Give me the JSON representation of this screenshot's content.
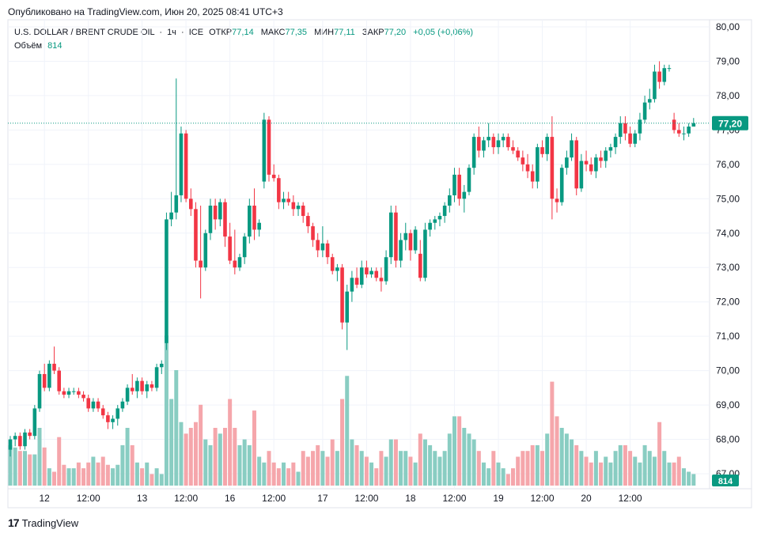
{
  "header": {
    "published": "Опубликовано на TradingView.com, Июн 20, 2025 08:41 UTC+3"
  },
  "legend": {
    "symbol": "U.S. DOLLAR / BRENT CRUDE OIL",
    "interval": "1ч",
    "exchange": "ICE",
    "open_label": "ОТКР",
    "open": "77,14",
    "high_label": "МАКС",
    "high": "77,35",
    "low_label": "МИН",
    "low": "77,11",
    "close_label": "ЗАКР",
    "close": "77,20",
    "change": "+0,05 (+0,06%)",
    "volume_label": "Объём",
    "volume": "814"
  },
  "footer": {
    "logo_text": "TradingView"
  },
  "colors": {
    "up": "#089981",
    "down": "#f23645",
    "up_vol": "#89cdc2",
    "down_vol": "#f5a6ab",
    "grid": "#f0f3fa",
    "axis_text": "#131722"
  },
  "chart_data": {
    "type": "candlestick",
    "title": "U.S. DOLLAR / BRENT CRUDE OIL · 1ч · ICE",
    "y_axis": {
      "min": 66.4,
      "max": 80.0,
      "ticks": [
        "80,00",
        "79,00",
        "78,00",
        "77,00",
        "76,00",
        "75,00",
        "74,00",
        "73,00",
        "72,00",
        "71,00",
        "70,00",
        "69,00",
        "68,00",
        "67,00"
      ],
      "tick_values": [
        80,
        79,
        78,
        77,
        76,
        75,
        74,
        73,
        72,
        71,
        70,
        69,
        68,
        67
      ]
    },
    "x_axis": {
      "labels": [
        "12",
        "12:00",
        "13",
        "12:00",
        "16",
        "12:00",
        "17",
        "12:00",
        "18",
        "12:00",
        "19",
        "12:00",
        "20",
        "12:00"
      ],
      "label_bars": [
        7,
        16,
        27,
        36,
        45,
        54,
        64,
        73,
        82,
        91,
        100,
        109,
        118,
        127
      ]
    },
    "last_price": "77,20",
    "last_volume": "814",
    "candles": [
      {
        "o": 67.7,
        "h": 68.1,
        "l": 67.5,
        "c": 68.0,
        "v": 0.35
      },
      {
        "o": 68.0,
        "h": 68.2,
        "l": 67.8,
        "c": 68.1,
        "v": 0.33
      },
      {
        "o": 68.1,
        "h": 68.2,
        "l": 67.7,
        "c": 67.8,
        "v": 0.3
      },
      {
        "o": 67.8,
        "h": 68.3,
        "l": 67.7,
        "c": 68.2,
        "v": 0.3
      },
      {
        "o": 68.2,
        "h": 68.3,
        "l": 68.0,
        "c": 68.1,
        "v": 0.27
      },
      {
        "o": 68.1,
        "h": 69.0,
        "l": 68.0,
        "c": 68.9,
        "v": 0.27
      },
      {
        "o": 68.9,
        "h": 70.0,
        "l": 68.8,
        "c": 69.9,
        "v": 0.5
      },
      {
        "o": 69.9,
        "h": 70.2,
        "l": 69.4,
        "c": 69.5,
        "v": 0.33
      },
      {
        "o": 69.5,
        "h": 70.3,
        "l": 69.4,
        "c": 70.2,
        "v": 0.15
      },
      {
        "o": 70.2,
        "h": 70.7,
        "l": 69.9,
        "c": 70.0,
        "v": 0.12
      },
      {
        "o": 70.0,
        "h": 70.1,
        "l": 69.3,
        "c": 69.4,
        "v": 0.42
      },
      {
        "o": 69.4,
        "h": 69.5,
        "l": 69.2,
        "c": 69.3,
        "v": 0.18
      },
      {
        "o": 69.3,
        "h": 69.5,
        "l": 69.2,
        "c": 69.4,
        "v": 0.15
      },
      {
        "o": 69.4,
        "h": 69.5,
        "l": 69.3,
        "c": 69.4,
        "v": 0.15
      },
      {
        "o": 69.4,
        "h": 69.5,
        "l": 69.2,
        "c": 69.3,
        "v": 0.2
      },
      {
        "o": 69.3,
        "h": 69.4,
        "l": 69.1,
        "c": 69.2,
        "v": 0.15
      },
      {
        "o": 69.2,
        "h": 69.3,
        "l": 68.8,
        "c": 68.9,
        "v": 0.2
      },
      {
        "o": 68.9,
        "h": 69.2,
        "l": 68.8,
        "c": 69.1,
        "v": 0.25
      },
      {
        "o": 69.1,
        "h": 69.2,
        "l": 68.8,
        "c": 68.9,
        "v": 0.2
      },
      {
        "o": 68.9,
        "h": 69.0,
        "l": 68.6,
        "c": 68.7,
        "v": 0.25
      },
      {
        "o": 68.7,
        "h": 68.8,
        "l": 68.3,
        "c": 68.5,
        "v": 0.18
      },
      {
        "o": 68.5,
        "h": 68.7,
        "l": 68.3,
        "c": 68.6,
        "v": 0.15
      },
      {
        "o": 68.6,
        "h": 69.0,
        "l": 68.4,
        "c": 68.9,
        "v": 0.18
      },
      {
        "o": 68.9,
        "h": 69.2,
        "l": 68.8,
        "c": 69.1,
        "v": 0.35
      },
      {
        "o": 69.1,
        "h": 69.6,
        "l": 69.0,
        "c": 69.5,
        "v": 0.5
      },
      {
        "o": 69.5,
        "h": 69.9,
        "l": 69.3,
        "c": 69.4,
        "v": 0.35
      },
      {
        "o": 69.4,
        "h": 69.8,
        "l": 69.2,
        "c": 69.7,
        "v": 0.2
      },
      {
        "o": 69.7,
        "h": 69.8,
        "l": 69.3,
        "c": 69.4,
        "v": 0.15
      },
      {
        "o": 69.4,
        "h": 69.7,
        "l": 69.2,
        "c": 69.6,
        "v": 0.2
      },
      {
        "o": 69.6,
        "h": 69.7,
        "l": 69.4,
        "c": 69.5,
        "v": 0.1
      },
      {
        "o": 69.5,
        "h": 70.2,
        "l": 69.4,
        "c": 70.1,
        "v": 0.15
      },
      {
        "o": 70.1,
        "h": 70.3,
        "l": 69.9,
        "c": 70.2,
        "v": 0.1
      },
      {
        "o": 70.8,
        "h": 74.6,
        "l": 70.6,
        "c": 74.4,
        "v": 1.3
      },
      {
        "o": 74.4,
        "h": 75.2,
        "l": 74.2,
        "c": 74.6,
        "v": 0.75
      },
      {
        "o": 74.6,
        "h": 78.5,
        "l": 74.4,
        "c": 75.1,
        "v": 1.0
      },
      {
        "o": 75.1,
        "h": 77.1,
        "l": 74.9,
        "c": 76.9,
        "v": 0.55
      },
      {
        "o": 76.9,
        "h": 77.0,
        "l": 74.9,
        "c": 75.0,
        "v": 0.45
      },
      {
        "o": 75.0,
        "h": 75.3,
        "l": 74.5,
        "c": 74.7,
        "v": 0.5
      },
      {
        "o": 74.7,
        "h": 74.9,
        "l": 73.0,
        "c": 73.2,
        "v": 0.55
      },
      {
        "o": 73.2,
        "h": 74.8,
        "l": 72.1,
        "c": 73.0,
        "v": 0.7
      },
      {
        "o": 73.0,
        "h": 74.1,
        "l": 72.9,
        "c": 74.0,
        "v": 0.4
      },
      {
        "o": 74.0,
        "h": 75.0,
        "l": 73.8,
        "c": 74.8,
        "v": 0.35
      },
      {
        "o": 74.8,
        "h": 75.0,
        "l": 74.1,
        "c": 74.4,
        "v": 0.5
      },
      {
        "o": 74.4,
        "h": 75.0,
        "l": 74.2,
        "c": 74.9,
        "v": 0.45
      },
      {
        "o": 74.9,
        "h": 75.0,
        "l": 73.6,
        "c": 73.9,
        "v": 0.5
      },
      {
        "o": 73.9,
        "h": 74.3,
        "l": 73.1,
        "c": 73.2,
        "v": 0.75
      },
      {
        "o": 73.2,
        "h": 74.1,
        "l": 72.8,
        "c": 73.0,
        "v": 0.5
      },
      {
        "o": 73.0,
        "h": 73.4,
        "l": 72.9,
        "c": 73.3,
        "v": 0.35
      },
      {
        "o": 73.3,
        "h": 74.0,
        "l": 73.1,
        "c": 73.9,
        "v": 0.4
      },
      {
        "o": 73.9,
        "h": 75.0,
        "l": 73.7,
        "c": 74.8,
        "v": 0.35
      },
      {
        "o": 74.8,
        "h": 75.3,
        "l": 73.8,
        "c": 74.1,
        "v": 0.65
      },
      {
        "o": 74.1,
        "h": 74.4,
        "l": 73.9,
        "c": 74.3,
        "v": 0.25
      },
      {
        "o": 75.5,
        "h": 77.5,
        "l": 75.3,
        "c": 77.3,
        "v": 0.2
      },
      {
        "o": 77.3,
        "h": 77.4,
        "l": 75.5,
        "c": 75.7,
        "v": 0.3
      },
      {
        "o": 75.7,
        "h": 76.0,
        "l": 75.5,
        "c": 75.6,
        "v": 0.2
      },
      {
        "o": 75.6,
        "h": 75.7,
        "l": 74.7,
        "c": 74.9,
        "v": 0.15
      },
      {
        "o": 74.9,
        "h": 75.2,
        "l": 74.7,
        "c": 75.0,
        "v": 0.2
      },
      {
        "o": 75.0,
        "h": 75.2,
        "l": 74.8,
        "c": 74.9,
        "v": 0.15
      },
      {
        "o": 74.9,
        "h": 75.1,
        "l": 74.5,
        "c": 74.7,
        "v": 0.2
      },
      {
        "o": 74.7,
        "h": 74.9,
        "l": 74.5,
        "c": 74.8,
        "v": 0.12
      },
      {
        "o": 74.8,
        "h": 74.9,
        "l": 74.3,
        "c": 74.5,
        "v": 0.3
      },
      {
        "o": 74.5,
        "h": 74.6,
        "l": 74.0,
        "c": 74.2,
        "v": 0.25
      },
      {
        "o": 74.2,
        "h": 74.3,
        "l": 73.6,
        "c": 73.8,
        "v": 0.3
      },
      {
        "o": 73.8,
        "h": 74.0,
        "l": 73.3,
        "c": 73.5,
        "v": 0.35
      },
      {
        "o": 73.5,
        "h": 74.2,
        "l": 73.3,
        "c": 73.7,
        "v": 0.3
      },
      {
        "o": 73.7,
        "h": 73.8,
        "l": 73.1,
        "c": 73.3,
        "v": 0.25
      },
      {
        "o": 73.3,
        "h": 73.4,
        "l": 72.8,
        "c": 72.9,
        "v": 0.4
      },
      {
        "o": 72.9,
        "h": 73.1,
        "l": 72.6,
        "c": 73.0,
        "v": 0.3
      },
      {
        "o": 73.0,
        "h": 73.1,
        "l": 71.2,
        "c": 71.4,
        "v": 0.75
      },
      {
        "o": 71.4,
        "h": 72.5,
        "l": 70.6,
        "c": 72.3,
        "v": 0.95
      },
      {
        "o": 72.3,
        "h": 72.9,
        "l": 72.0,
        "c": 72.7,
        "v": 0.4
      },
      {
        "o": 72.7,
        "h": 73.0,
        "l": 72.4,
        "c": 72.5,
        "v": 0.35
      },
      {
        "o": 72.5,
        "h": 73.2,
        "l": 72.4,
        "c": 73.0,
        "v": 0.3
      },
      {
        "o": 73.0,
        "h": 73.2,
        "l": 72.7,
        "c": 72.8,
        "v": 0.25
      },
      {
        "o": 72.8,
        "h": 73.0,
        "l": 72.7,
        "c": 72.9,
        "v": 0.2
      },
      {
        "o": 72.9,
        "h": 73.0,
        "l": 72.6,
        "c": 72.7,
        "v": 0.15
      },
      {
        "o": 72.7,
        "h": 73.0,
        "l": 72.3,
        "c": 72.6,
        "v": 0.3
      },
      {
        "o": 72.6,
        "h": 73.5,
        "l": 72.5,
        "c": 73.3,
        "v": 0.25
      },
      {
        "o": 73.3,
        "h": 74.8,
        "l": 73.1,
        "c": 74.6,
        "v": 0.4
      },
      {
        "o": 74.6,
        "h": 74.8,
        "l": 73.0,
        "c": 73.2,
        "v": 0.4
      },
      {
        "o": 73.2,
        "h": 74.0,
        "l": 73.0,
        "c": 73.8,
        "v": 0.3
      },
      {
        "o": 73.8,
        "h": 74.3,
        "l": 73.5,
        "c": 74.0,
        "v": 0.3
      },
      {
        "o": 74.0,
        "h": 74.1,
        "l": 73.2,
        "c": 73.5,
        "v": 0.25
      },
      {
        "o": 73.5,
        "h": 74.2,
        "l": 73.4,
        "c": 74.1,
        "v": 0.2
      },
      {
        "o": 73.4,
        "h": 73.8,
        "l": 72.6,
        "c": 72.7,
        "v": 0.45
      },
      {
        "o": 72.7,
        "h": 74.3,
        "l": 72.6,
        "c": 74.1,
        "v": 0.4
      },
      {
        "o": 74.1,
        "h": 74.4,
        "l": 73.9,
        "c": 74.3,
        "v": 0.35
      },
      {
        "o": 74.3,
        "h": 74.5,
        "l": 74.1,
        "c": 74.4,
        "v": 0.3
      },
      {
        "o": 74.4,
        "h": 74.6,
        "l": 74.2,
        "c": 74.5,
        "v": 0.25
      },
      {
        "o": 74.5,
        "h": 74.9,
        "l": 74.3,
        "c": 74.8,
        "v": 0.3
      },
      {
        "o": 74.8,
        "h": 75.3,
        "l": 74.6,
        "c": 75.1,
        "v": 0.45
      },
      {
        "o": 75.1,
        "h": 75.9,
        "l": 74.9,
        "c": 75.7,
        "v": 0.6
      },
      {
        "o": 75.7,
        "h": 75.9,
        "l": 74.8,
        "c": 75.0,
        "v": 0.6
      },
      {
        "o": 75.0,
        "h": 75.4,
        "l": 74.6,
        "c": 75.2,
        "v": 0.5
      },
      {
        "o": 75.2,
        "h": 76.0,
        "l": 75.1,
        "c": 75.9,
        "v": 0.45
      },
      {
        "o": 75.9,
        "h": 76.9,
        "l": 75.7,
        "c": 76.8,
        "v": 0.4
      },
      {
        "o": 76.8,
        "h": 77.1,
        "l": 76.2,
        "c": 76.4,
        "v": 0.3
      },
      {
        "o": 76.4,
        "h": 76.8,
        "l": 76.2,
        "c": 76.7,
        "v": 0.2
      },
      {
        "o": 76.7,
        "h": 77.2,
        "l": 76.5,
        "c": 76.8,
        "v": 0.15
      },
      {
        "o": 76.8,
        "h": 76.9,
        "l": 76.3,
        "c": 76.5,
        "v": 0.3
      },
      {
        "o": 76.5,
        "h": 76.9,
        "l": 76.3,
        "c": 76.7,
        "v": 0.2
      },
      {
        "o": 76.7,
        "h": 76.9,
        "l": 76.5,
        "c": 76.8,
        "v": 0.15
      },
      {
        "o": 76.8,
        "h": 76.9,
        "l": 76.4,
        "c": 76.5,
        "v": 0.1
      },
      {
        "o": 76.5,
        "h": 76.7,
        "l": 76.3,
        "c": 76.4,
        "v": 0.15
      },
      {
        "o": 76.4,
        "h": 76.5,
        "l": 76.1,
        "c": 76.2,
        "v": 0.25
      },
      {
        "o": 76.2,
        "h": 76.4,
        "l": 75.8,
        "c": 76.0,
        "v": 0.3
      },
      {
        "o": 76.0,
        "h": 76.3,
        "l": 75.6,
        "c": 75.8,
        "v": 0.3
      },
      {
        "o": 75.8,
        "h": 76.0,
        "l": 75.3,
        "c": 75.5,
        "v": 0.35
      },
      {
        "o": 75.5,
        "h": 76.6,
        "l": 75.3,
        "c": 76.5,
        "v": 0.35
      },
      {
        "o": 76.5,
        "h": 76.7,
        "l": 76.2,
        "c": 76.3,
        "v": 0.3
      },
      {
        "o": 76.3,
        "h": 76.9,
        "l": 76.1,
        "c": 76.8,
        "v": 0.45
      },
      {
        "o": 76.8,
        "h": 77.4,
        "l": 74.4,
        "c": 75.0,
        "v": 0.9
      },
      {
        "o": 75.0,
        "h": 75.3,
        "l": 74.6,
        "c": 74.9,
        "v": 0.6
      },
      {
        "o": 74.9,
        "h": 76.0,
        "l": 74.8,
        "c": 75.9,
        "v": 0.5
      },
      {
        "o": 75.9,
        "h": 76.4,
        "l": 75.7,
        "c": 76.2,
        "v": 0.45
      },
      {
        "o": 76.2,
        "h": 76.9,
        "l": 76.1,
        "c": 76.7,
        "v": 0.4
      },
      {
        "o": 76.7,
        "h": 76.8,
        "l": 75.1,
        "c": 75.3,
        "v": 0.35
      },
      {
        "o": 75.3,
        "h": 76.3,
        "l": 75.2,
        "c": 76.1,
        "v": 0.3
      },
      {
        "o": 76.1,
        "h": 76.4,
        "l": 75.8,
        "c": 76.0,
        "v": 0.25
      },
      {
        "o": 76.0,
        "h": 76.2,
        "l": 75.7,
        "c": 75.8,
        "v": 0.2
      },
      {
        "o": 75.8,
        "h": 76.3,
        "l": 75.6,
        "c": 76.2,
        "v": 0.3
      },
      {
        "o": 76.2,
        "h": 76.4,
        "l": 75.9,
        "c": 76.1,
        "v": 0.2
      },
      {
        "o": 76.1,
        "h": 76.5,
        "l": 75.9,
        "c": 76.4,
        "v": 0.25
      },
      {
        "o": 76.4,
        "h": 76.6,
        "l": 76.2,
        "c": 76.5,
        "v": 0.2
      },
      {
        "o": 76.5,
        "h": 76.9,
        "l": 76.3,
        "c": 76.8,
        "v": 0.3
      },
      {
        "o": 76.8,
        "h": 77.4,
        "l": 76.6,
        "c": 77.2,
        "v": 0.35
      },
      {
        "o": 77.2,
        "h": 77.4,
        "l": 76.7,
        "c": 76.9,
        "v": 0.35
      },
      {
        "o": 76.9,
        "h": 77.1,
        "l": 76.5,
        "c": 76.6,
        "v": 0.3
      },
      {
        "o": 76.6,
        "h": 77.0,
        "l": 76.5,
        "c": 76.9,
        "v": 0.25
      },
      {
        "o": 76.9,
        "h": 77.5,
        "l": 76.7,
        "c": 77.3,
        "v": 0.2
      },
      {
        "o": 77.3,
        "h": 78.0,
        "l": 77.2,
        "c": 77.8,
        "v": 0.35
      },
      {
        "o": 77.8,
        "h": 78.2,
        "l": 77.6,
        "c": 77.9,
        "v": 0.3
      },
      {
        "o": 77.9,
        "h": 78.9,
        "l": 77.8,
        "c": 78.7,
        "v": 0.25
      },
      {
        "o": 78.7,
        "h": 79.0,
        "l": 78.2,
        "c": 78.4,
        "v": 0.55
      },
      {
        "o": 78.4,
        "h": 78.9,
        "l": 78.3,
        "c": 78.8,
        "v": 0.3
      },
      {
        "o": 78.8,
        "h": 78.9,
        "l": 78.7,
        "c": 78.8,
        "v": 0.2
      },
      {
        "o": 77.3,
        "h": 77.5,
        "l": 76.9,
        "c": 77.0,
        "v": 0.2
      },
      {
        "o": 77.0,
        "h": 77.2,
        "l": 76.8,
        "c": 76.9,
        "v": 0.25
      },
      {
        "o": 76.9,
        "h": 77.1,
        "l": 76.7,
        "c": 76.9,
        "v": 0.15
      },
      {
        "o": 76.9,
        "h": 77.2,
        "l": 76.8,
        "c": 77.1,
        "v": 0.12
      },
      {
        "o": 77.1,
        "h": 77.35,
        "l": 77.11,
        "c": 77.2,
        "v": 0.1
      }
    ]
  }
}
